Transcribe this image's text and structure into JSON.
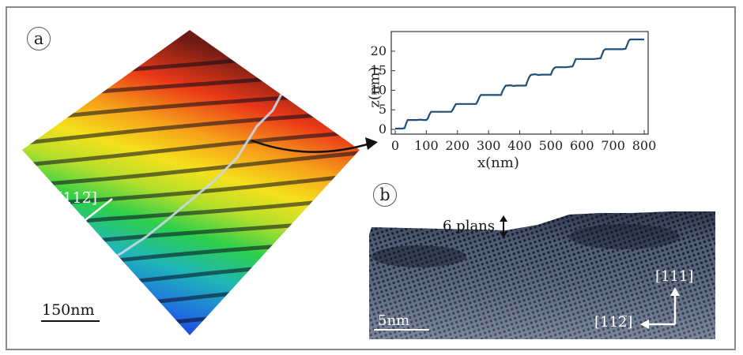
{
  "panels": {
    "a": {
      "label": "a",
      "scale_bar": "150nm",
      "direction": "[112̅]"
    },
    "b": {
      "label": "b",
      "step_label": "6 plans",
      "scale_bar": "5nm",
      "dir_up": "[111]",
      "dir_left": "[112̅]"
    }
  },
  "chart_data": {
    "type": "line",
    "title": "",
    "xlabel": "x(nm)",
    "ylabel": "z(nm)",
    "xlim": [
      0,
      800
    ],
    "ylim": [
      0,
      23
    ],
    "xticks": [
      0,
      100,
      200,
      300,
      400,
      500,
      600,
      700,
      800
    ],
    "yticks": [
      0,
      5,
      10,
      15,
      20
    ],
    "series": [
      {
        "color": "#1f4e79",
        "x": [
          0,
          20,
          30,
          35,
          40,
          45,
          50,
          60,
          70,
          80,
          90,
          95,
          100,
          105,
          110,
          115,
          120,
          130,
          140,
          150,
          160,
          170,
          180,
          185,
          190,
          195,
          200,
          210,
          220,
          230,
          240,
          250,
          260,
          265,
          270,
          275,
          280,
          290,
          300,
          310,
          320,
          330,
          340,
          345,
          350,
          355,
          360,
          370,
          380,
          390,
          400,
          410,
          420,
          425,
          430,
          435,
          440,
          450,
          460,
          470,
          480,
          490,
          500,
          505,
          510,
          515,
          520,
          530,
          540,
          550,
          560,
          570,
          575,
          580,
          590,
          600,
          610,
          620,
          630,
          640,
          650,
          660,
          665,
          670,
          675,
          680,
          690,
          700,
          710,
          720,
          730,
          740,
          745,
          750,
          755,
          760,
          770,
          780,
          790,
          800
        ],
        "y": [
          0.2,
          0.2,
          0.3,
          1.5,
          2.4,
          2.4,
          2.4,
          2.4,
          2.4,
          2.5,
          2.4,
          2.4,
          2.4,
          2.8,
          3.8,
          4.5,
          4.5,
          4.5,
          4.5,
          4.5,
          4.5,
          4.5,
          4.5,
          5.0,
          5.8,
          6.5,
          6.5,
          6.5,
          6.5,
          6.5,
          6.5,
          6.5,
          6.5,
          7.2,
          8.2,
          8.8,
          8.8,
          8.8,
          8.8,
          8.8,
          8.8,
          8.8,
          8.8,
          9.8,
          10.6,
          11.2,
          11.2,
          11.3,
          11.1,
          11.2,
          11.2,
          11.2,
          11.2,
          12.3,
          13.3,
          13.9,
          14.0,
          14.1,
          13.9,
          14.0,
          14.0,
          14.0,
          14.0,
          15.0,
          15.6,
          15.9,
          15.9,
          15.9,
          15.9,
          15.9,
          16.0,
          16.1,
          17.0,
          18.0,
          18.0,
          18.0,
          18.0,
          18.0,
          18.0,
          18.0,
          18.1,
          18.2,
          19.2,
          20.2,
          20.5,
          20.5,
          20.5,
          20.5,
          20.5,
          20.5,
          20.5,
          20.6,
          21.5,
          22.6,
          23.0,
          23.0,
          23.0,
          23.0,
          23.0,
          23.0
        ]
      }
    ]
  }
}
